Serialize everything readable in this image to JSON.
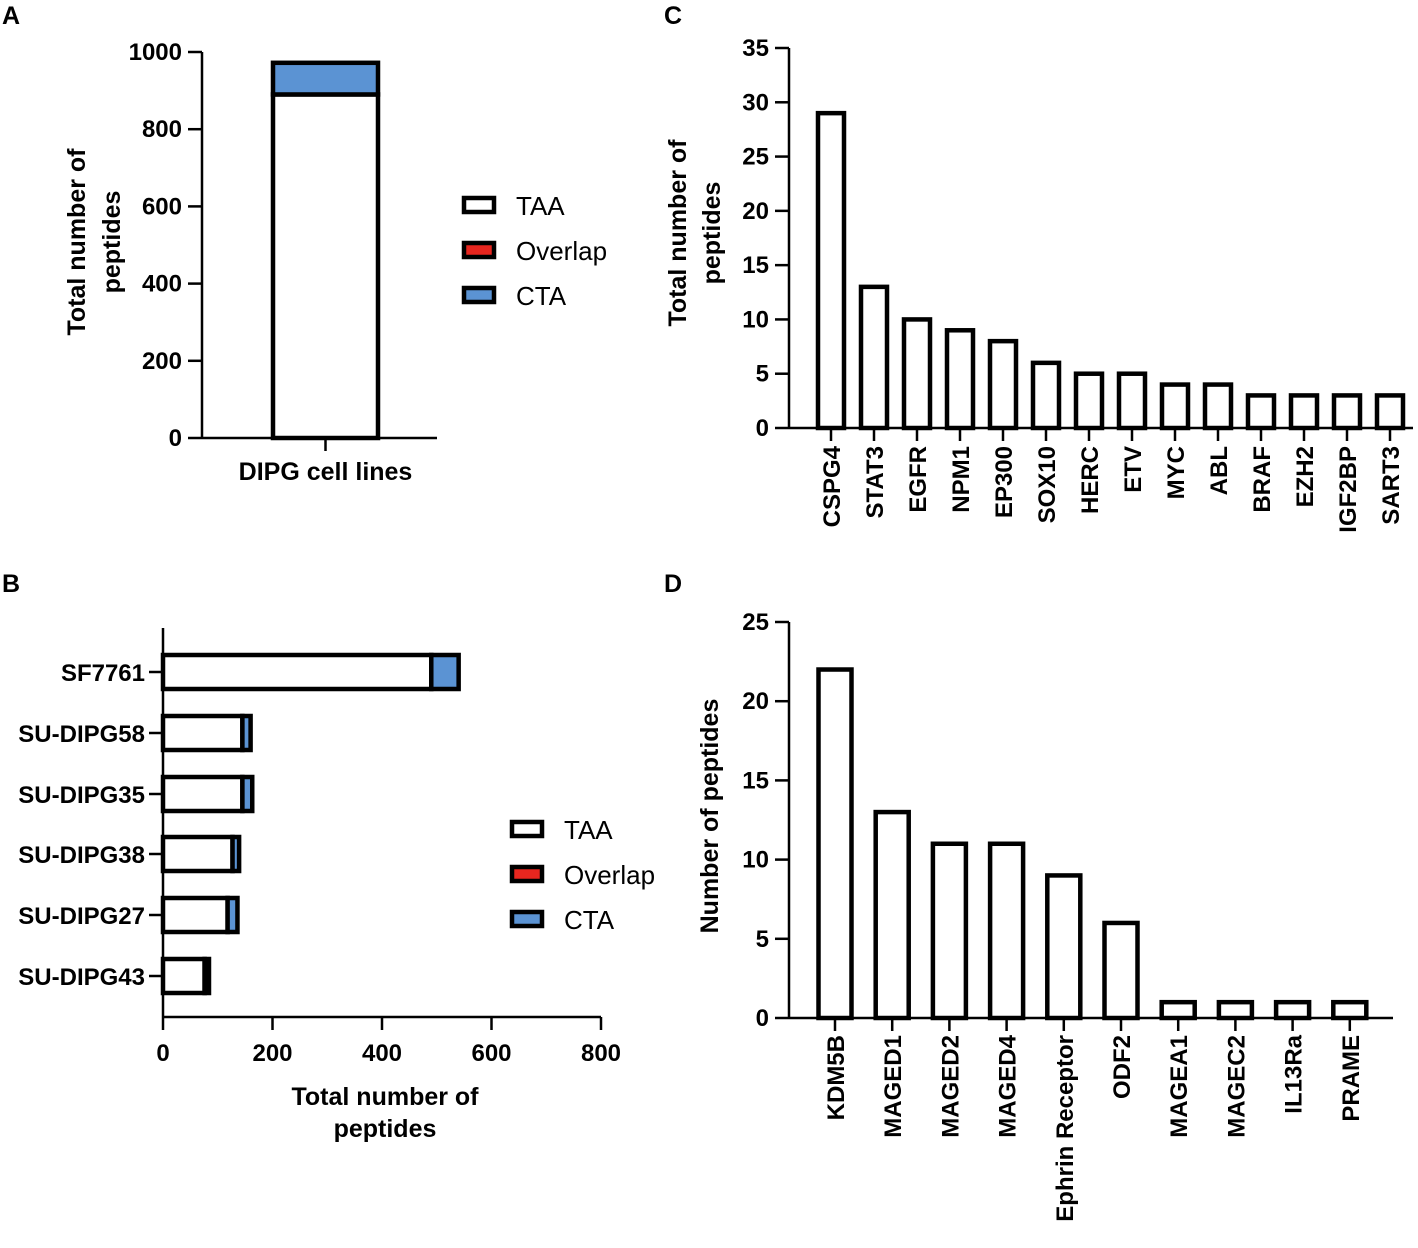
{
  "colors": {
    "TAA": "#ffffff",
    "Overlap": "#e8261f",
    "CTA": "#5b93d3",
    "stroke": "#000000"
  },
  "chart_data": [
    {
      "panel": "A",
      "type": "bar",
      "orientation": "vertical",
      "stacked": true,
      "categories": [
        "DIPG cell lines"
      ],
      "series": [
        {
          "name": "TAA",
          "values": [
            890
          ]
        },
        {
          "name": "Overlap",
          "values": [
            0
          ]
        },
        {
          "name": "CTA",
          "values": [
            82
          ]
        }
      ],
      "title": "",
      "xlabel": "DIPG cell lines",
      "ylabel": "Total number of peptides",
      "ylim": [
        0,
        1000
      ],
      "yticks": [
        "0",
        "200",
        "400",
        "600",
        "800",
        "1000"
      ],
      "legend": [
        "TAA",
        "Overlap",
        "CTA"
      ],
      "legend_position": "right"
    },
    {
      "panel": "B",
      "type": "bar",
      "orientation": "horizontal",
      "stacked": true,
      "categories": [
        "SF7761",
        "SU-DIPG58",
        "SU-DIPG35",
        "SU-DIPG38",
        "SU-DIPG27",
        "SU-DIPG43"
      ],
      "series": [
        {
          "name": "TAA",
          "values": [
            490,
            145,
            145,
            127,
            118,
            76
          ]
        },
        {
          "name": "Overlap",
          "values": [
            0,
            0,
            0,
            0,
            0,
            0
          ]
        },
        {
          "name": "CTA",
          "values": [
            50,
            15,
            18,
            12,
            18,
            8
          ]
        }
      ],
      "title": "",
      "xlabel": "Total number of peptides",
      "ylabel": "",
      "xlim": [
        0,
        800
      ],
      "xticks": [
        "0",
        "200",
        "400",
        "600",
        "800"
      ],
      "legend": [
        "TAA",
        "Overlap",
        "CTA"
      ],
      "legend_position": "right"
    },
    {
      "panel": "C",
      "type": "bar",
      "orientation": "vertical",
      "categories": [
        "CSPG4",
        "STAT3",
        "EGFR",
        "NPM1",
        "EP300",
        "SOX10",
        "HERC",
        "ETV",
        "MYC",
        "ABL",
        "BRAF",
        "EZH2",
        "IGF2BP",
        "SART3"
      ],
      "values": [
        29,
        13,
        10,
        9,
        8,
        6,
        5,
        5,
        4,
        4,
        3,
        3,
        3,
        3
      ],
      "title": "",
      "xlabel": "",
      "ylabel": "Total number of peptides",
      "ylim": [
        0,
        35
      ],
      "yticks": [
        "0",
        "5",
        "10",
        "15",
        "20",
        "25",
        "30",
        "35"
      ]
    },
    {
      "panel": "D",
      "type": "bar",
      "orientation": "vertical",
      "categories": [
        "KDM5B",
        "MAGED1",
        "MAGED2",
        "MAGED4",
        "Ephrin Receptor",
        "ODF2",
        "MAGEA1",
        "MAGEC2",
        "IL13Ra",
        "PRAME"
      ],
      "values": [
        22,
        13,
        11,
        11,
        9,
        6,
        1,
        1,
        1,
        1
      ],
      "title": "",
      "xlabel": "",
      "ylabel": "Number of peptides",
      "ylim": [
        0,
        25
      ],
      "yticks": [
        "0",
        "5",
        "10",
        "15",
        "20",
        "25"
      ]
    }
  ],
  "panels": {
    "a": "A",
    "b": "B",
    "c": "C",
    "d": "D"
  },
  "axis_titles": {
    "a_y1": "Total number of",
    "a_y2": "peptides",
    "b_x1": "Total number of",
    "b_x2": "peptides",
    "c_y1": "Total number of",
    "c_y2": "peptides",
    "d_y": "Number of peptides"
  }
}
